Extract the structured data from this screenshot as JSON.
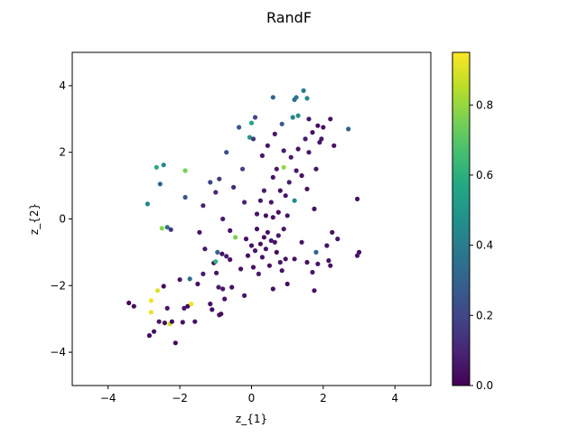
{
  "chart_data": {
    "type": "scatter",
    "title": "RandF",
    "xlabel": "z_{1}",
    "ylabel": "z_{2}",
    "xlim": [
      -5,
      5
    ],
    "ylim": [
      -5,
      5
    ],
    "xticks": [
      -4,
      -2,
      0,
      2,
      4
    ],
    "yticks": [
      -4,
      -2,
      0,
      2,
      4
    ],
    "xtick_labels": [
      "−4",
      "−2",
      "0",
      "2",
      "4"
    ],
    "ytick_labels": [
      "−4",
      "−2",
      "0",
      "2",
      "4"
    ],
    "grid": false,
    "colorbar": {
      "colormap": "viridis",
      "range": [
        0,
        0.95
      ],
      "ticks": [
        0.0,
        0.2,
        0.4,
        0.6,
        0.8
      ],
      "tick_labels": [
        "0.0",
        "0.2",
        "0.4",
        "0.6",
        "0.8"
      ]
    },
    "points": [
      {
        "x": -3.42,
        "y": -2.52,
        "c": 0.02
      },
      {
        "x": -3.28,
        "y": -2.62,
        "c": 0.03
      },
      {
        "x": -2.85,
        "y": -3.5,
        "c": 0.02
      },
      {
        "x": -2.72,
        "y": -3.38,
        "c": 0.04
      },
      {
        "x": -2.8,
        "y": -2.45,
        "c": 0.93
      },
      {
        "x": -2.8,
        "y": -2.8,
        "c": 0.92
      },
      {
        "x": -2.62,
        "y": -2.15,
        "c": 0.9
      },
      {
        "x": -2.58,
        "y": -3.08,
        "c": 0.05
      },
      {
        "x": -2.42,
        "y": -3.12,
        "c": 0.04
      },
      {
        "x": -2.45,
        "y": -2.02,
        "c": 0.03
      },
      {
        "x": -2.35,
        "y": -2.68,
        "c": 0.06
      },
      {
        "x": -2.28,
        "y": -3.15,
        "c": 0.88
      },
      {
        "x": -2.22,
        "y": -3.08,
        "c": 0.03
      },
      {
        "x": -2.12,
        "y": -3.72,
        "c": 0.02
      },
      {
        "x": -2.0,
        "y": -1.82,
        "c": 0.05
      },
      {
        "x": -1.92,
        "y": -3.1,
        "c": 0.04
      },
      {
        "x": -1.88,
        "y": -2.68,
        "c": 0.06
      },
      {
        "x": -1.78,
        "y": -2.62,
        "c": 0.03
      },
      {
        "x": -1.68,
        "y": -2.55,
        "c": 0.93
      },
      {
        "x": -1.58,
        "y": -3.08,
        "c": 0.05
      },
      {
        "x": -1.72,
        "y": -1.8,
        "c": 0.35
      },
      {
        "x": -1.5,
        "y": -1.95,
        "c": 0.04
      },
      {
        "x": -1.45,
        "y": -0.4,
        "c": 0.05
      },
      {
        "x": -1.3,
        "y": -0.9,
        "c": 0.06
      },
      {
        "x": -1.35,
        "y": -1.65,
        "c": 0.08
      },
      {
        "x": -1.15,
        "y": -2.55,
        "c": 0.04
      },
      {
        "x": -1.1,
        "y": -2.72,
        "c": 0.03
      },
      {
        "x": -1.05,
        "y": -1.32,
        "c": 0.02
      },
      {
        "x": -0.98,
        "y": -1.62,
        "c": 0.05
      },
      {
        "x": -0.92,
        "y": -2.05,
        "c": 0.07
      },
      {
        "x": -0.9,
        "y": -2.88,
        "c": 0.04
      },
      {
        "x": -0.85,
        "y": -2.85,
        "c": 0.03
      },
      {
        "x": -0.8,
        "y": -2.1,
        "c": 0.06
      },
      {
        "x": -0.82,
        "y": -1.05,
        "c": 0.04
      },
      {
        "x": -0.75,
        "y": -2.4,
        "c": 0.05
      },
      {
        "x": -0.95,
        "y": -1.0,
        "c": 0.3
      },
      {
        "x": -1.0,
        "y": -1.28,
        "c": 0.62
      },
      {
        "x": -0.7,
        "y": -1.12,
        "c": 0.08
      },
      {
        "x": -0.6,
        "y": -1.22,
        "c": 0.05
      },
      {
        "x": -0.55,
        "y": -2.05,
        "c": 0.04
      },
      {
        "x": -0.45,
        "y": -0.55,
        "c": 0.75
      },
      {
        "x": -0.3,
        "y": -1.5,
        "c": 0.05
      },
      {
        "x": -0.2,
        "y": -2.3,
        "c": 0.06
      },
      {
        "x": -0.15,
        "y": -0.6,
        "c": 0.04
      },
      {
        "x": -0.1,
        "y": -1.1,
        "c": 0.03
      },
      {
        "x": 0.0,
        "y": -0.8,
        "c": 0.05
      },
      {
        "x": 0.05,
        "y": -1.45,
        "c": 0.04
      },
      {
        "x": 0.1,
        "y": -0.95,
        "c": 0.06
      },
      {
        "x": 0.15,
        "y": -0.3,
        "c": 0.05
      },
      {
        "x": 0.2,
        "y": -1.65,
        "c": 0.07
      },
      {
        "x": 0.25,
        "y": -0.75,
        "c": 0.04
      },
      {
        "x": 0.3,
        "y": -1.15,
        "c": 0.05
      },
      {
        "x": 0.35,
        "y": -0.55,
        "c": 0.03
      },
      {
        "x": 0.4,
        "y": -0.9,
        "c": 0.06
      },
      {
        "x": 0.45,
        "y": -0.4,
        "c": 0.04
      },
      {
        "x": 0.5,
        "y": -1.4,
        "c": 0.05
      },
      {
        "x": 0.55,
        "y": -0.65,
        "c": 0.07
      },
      {
        "x": 0.6,
        "y": -2.1,
        "c": 0.04
      },
      {
        "x": 0.65,
        "y": -0.7,
        "c": 0.05
      },
      {
        "x": 0.7,
        "y": -1.0,
        "c": 0.03
      },
      {
        "x": 0.75,
        "y": -0.5,
        "c": 0.06
      },
      {
        "x": 0.8,
        "y": -1.3,
        "c": 0.05
      },
      {
        "x": 0.85,
        "y": -1.55,
        "c": 0.04
      },
      {
        "x": 0.9,
        "y": -0.3,
        "c": 0.06
      },
      {
        "x": 0.95,
        "y": -1.2,
        "c": 0.05
      },
      {
        "x": 1.0,
        "y": -1.95,
        "c": 0.04
      },
      {
        "x": 0.15,
        "y": 0.15,
        "c": 0.05
      },
      {
        "x": 0.25,
        "y": 0.55,
        "c": 0.06
      },
      {
        "x": 0.35,
        "y": 0.85,
        "c": 0.08
      },
      {
        "x": 0.4,
        "y": 0.1,
        "c": 0.04
      },
      {
        "x": 0.55,
        "y": 0.5,
        "c": 0.06
      },
      {
        "x": 0.6,
        "y": 1.25,
        "c": 0.05
      },
      {
        "x": 0.7,
        "y": 1.5,
        "c": 0.07
      },
      {
        "x": 0.75,
        "y": 0.2,
        "c": 0.04
      },
      {
        "x": 0.8,
        "y": 0.85,
        "c": 0.05
      },
      {
        "x": 0.9,
        "y": 1.55,
        "c": 0.8
      },
      {
        "x": 0.95,
        "y": 0.7,
        "c": 0.06
      },
      {
        "x": 1.0,
        "y": 0.1,
        "c": 0.05
      },
      {
        "x": 1.05,
        "y": 1.1,
        "c": 0.08
      },
      {
        "x": 1.1,
        "y": 1.85,
        "c": 0.07
      },
      {
        "x": 1.2,
        "y": 0.55,
        "c": 0.45
      },
      {
        "x": 1.25,
        "y": 1.45,
        "c": 0.06
      },
      {
        "x": 1.3,
        "y": 2.1,
        "c": 0.05
      },
      {
        "x": 1.4,
        "y": 1.3,
        "c": 0.04
      },
      {
        "x": 1.5,
        "y": 2.4,
        "c": 0.07
      },
      {
        "x": 1.55,
        "y": 0.9,
        "c": 0.05
      },
      {
        "x": 1.6,
        "y": 2.0,
        "c": 0.06
      },
      {
        "x": 1.7,
        "y": 2.6,
        "c": 0.04
      },
      {
        "x": 1.8,
        "y": 1.5,
        "c": 0.05
      },
      {
        "x": 1.85,
        "y": 2.8,
        "c": 0.03
      },
      {
        "x": 1.9,
        "y": 2.3,
        "c": 0.06
      },
      {
        "x": 2.0,
        "y": 2.75,
        "c": 0.05
      },
      {
        "x": 1.45,
        "y": 3.85,
        "c": 0.4
      },
      {
        "x": 1.55,
        "y": 3.62,
        "c": 0.45
      },
      {
        "x": 1.25,
        "y": 3.65,
        "c": 0.38
      },
      {
        "x": 1.2,
        "y": 3.58,
        "c": 0.35
      },
      {
        "x": 1.15,
        "y": 3.05,
        "c": 0.42
      },
      {
        "x": 1.3,
        "y": 3.1,
        "c": 0.48
      },
      {
        "x": 0.6,
        "y": 3.65,
        "c": 0.3
      },
      {
        "x": 0.85,
        "y": 2.85,
        "c": 0.28
      },
      {
        "x": 0.1,
        "y": 3.05,
        "c": 0.2
      },
      {
        "x": 0.0,
        "y": 2.88,
        "c": 0.55
      },
      {
        "x": -0.05,
        "y": 2.45,
        "c": 0.5
      },
      {
        "x": 0.05,
        "y": 2.4,
        "c": 0.15
      },
      {
        "x": -0.35,
        "y": 2.75,
        "c": 0.25
      },
      {
        "x": -0.7,
        "y": 2.0,
        "c": 0.22
      },
      {
        "x": -0.25,
        "y": 1.5,
        "c": 0.18
      },
      {
        "x": -0.5,
        "y": 0.95,
        "c": 0.12
      },
      {
        "x": -0.9,
        "y": 1.2,
        "c": 0.15
      },
      {
        "x": -1.15,
        "y": 1.1,
        "c": 0.2
      },
      {
        "x": -1.0,
        "y": 0.8,
        "c": 0.1
      },
      {
        "x": -1.35,
        "y": 0.4,
        "c": 0.08
      },
      {
        "x": -0.2,
        "y": 0.5,
        "c": 0.1
      },
      {
        "x": -1.85,
        "y": 0.65,
        "c": 0.25
      },
      {
        "x": -1.85,
        "y": 1.45,
        "c": 0.75
      },
      {
        "x": -2.65,
        "y": 1.55,
        "c": 0.58
      },
      {
        "x": -2.55,
        "y": 1.05,
        "c": 0.3
      },
      {
        "x": -2.45,
        "y": 1.62,
        "c": 0.45
      },
      {
        "x": -2.9,
        "y": 0.45,
        "c": 0.42
      },
      {
        "x": -2.5,
        "y": -0.28,
        "c": 0.78
      },
      {
        "x": -2.35,
        "y": -0.25,
        "c": 0.35
      },
      {
        "x": -2.25,
        "y": -0.32,
        "c": 0.15
      },
      {
        "x": 2.2,
        "y": 3.0,
        "c": 0.05
      },
      {
        "x": 2.3,
        "y": 2.2,
        "c": 0.04
      },
      {
        "x": 2.7,
        "y": 2.7,
        "c": 0.3
      },
      {
        "x": 1.95,
        "y": 2.4,
        "c": 0.06
      },
      {
        "x": 1.75,
        "y": 0.3,
        "c": 0.05
      },
      {
        "x": 2.1,
        "y": -0.8,
        "c": 0.05
      },
      {
        "x": 2.25,
        "y": -0.4,
        "c": 0.04
      },
      {
        "x": 2.4,
        "y": -0.6,
        "c": 0.06
      },
      {
        "x": 1.85,
        "y": -1.35,
        "c": 0.05
      },
      {
        "x": 1.55,
        "y": -1.3,
        "c": 0.04
      },
      {
        "x": 1.7,
        "y": -1.6,
        "c": 0.06
      },
      {
        "x": 1.75,
        "y": -2.15,
        "c": 0.04
      },
      {
        "x": 2.15,
        "y": -1.25,
        "c": 0.05
      },
      {
        "x": 1.8,
        "y": -1.0,
        "c": 0.3
      },
      {
        "x": 2.95,
        "y": 0.6,
        "c": 0.05
      },
      {
        "x": 3.0,
        "y": -1.0,
        "c": 0.04
      },
      {
        "x": 2.95,
        "y": -1.1,
        "c": 0.06
      },
      {
        "x": 2.2,
        "y": -1.4,
        "c": 0.05
      },
      {
        "x": 1.4,
        "y": -0.7,
        "c": 0.06
      },
      {
        "x": 1.2,
        "y": -1.2,
        "c": 0.05
      },
      {
        "x": -0.6,
        "y": -0.35,
        "c": 0.05
      },
      {
        "x": 0.6,
        "y": 0.05,
        "c": 0.05
      },
      {
        "x": 0.3,
        "y": 1.9,
        "c": 0.06
      },
      {
        "x": -0.8,
        "y": 0.0,
        "c": 0.07
      },
      {
        "x": 0.45,
        "y": 2.2,
        "c": 0.05
      },
      {
        "x": 0.65,
        "y": 2.55,
        "c": 0.06
      },
      {
        "x": 0.9,
        "y": 2.05,
        "c": 0.08
      },
      {
        "x": 1.6,
        "y": 3.0,
        "c": 0.06
      }
    ]
  }
}
